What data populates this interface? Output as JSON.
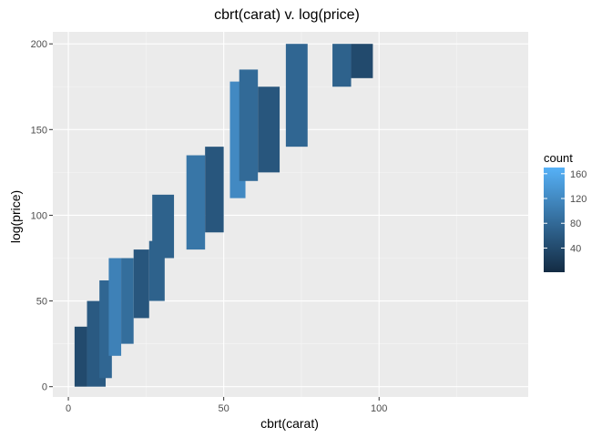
{
  "chart_data": {
    "type": "heatmap",
    "title": "cbrt(carat) v. log(price)",
    "xlabel": "cbrt(carat)",
    "ylabel": "log(price)",
    "xlim": [
      -5,
      148
    ],
    "ylim": [
      -6,
      207
    ],
    "x_ticks": [
      0,
      50,
      100
    ],
    "y_ticks": [
      0,
      50,
      100,
      150,
      200
    ],
    "grid": true,
    "legend": {
      "title": "count",
      "position": "right",
      "ticks": [
        40,
        80,
        120,
        160
      ],
      "range": [
        1,
        170
      ],
      "color_low": "#132b43",
      "color_high": "#56b1f7"
    },
    "panel_background": "#ebebeb",
    "bins": [
      {
        "x": [
          2,
          6
        ],
        "y": [
          0,
          35
        ],
        "count": 40
      },
      {
        "x": [
          6,
          12
        ],
        "y": [
          0,
          50
        ],
        "count": 60
      },
      {
        "x": [
          10,
          14
        ],
        "y": [
          5,
          62
        ],
        "count": 75
      },
      {
        "x": [
          13,
          17
        ],
        "y": [
          18,
          75
        ],
        "count": 110
      },
      {
        "x": [
          17,
          21
        ],
        "y": [
          25,
          75
        ],
        "count": 85
      },
      {
        "x": [
          21,
          26
        ],
        "y": [
          40,
          80
        ],
        "count": 55
      },
      {
        "x": [
          26,
          31
        ],
        "y": [
          50,
          85
        ],
        "count": 70
      },
      {
        "x": [
          27,
          34
        ],
        "y": [
          75,
          112
        ],
        "count": 70
      },
      {
        "x": [
          38,
          44
        ],
        "y": [
          80,
          135
        ],
        "count": 95
      },
      {
        "x": [
          44,
          50
        ],
        "y": [
          90,
          140
        ],
        "count": 55
      },
      {
        "x": [
          52,
          57
        ],
        "y": [
          110,
          178
        ],
        "count": 120
      },
      {
        "x": [
          55,
          61
        ],
        "y": [
          120,
          185
        ],
        "count": 80
      },
      {
        "x": [
          61,
          68
        ],
        "y": [
          125,
          175
        ],
        "count": 55
      },
      {
        "x": [
          70,
          77
        ],
        "y": [
          140,
          200
        ],
        "count": 75
      },
      {
        "x": [
          85,
          91
        ],
        "y": [
          175,
          200
        ],
        "count": 70
      },
      {
        "x": [
          91,
          98
        ],
        "y": [
          180,
          200
        ],
        "count": 40
      }
    ]
  }
}
